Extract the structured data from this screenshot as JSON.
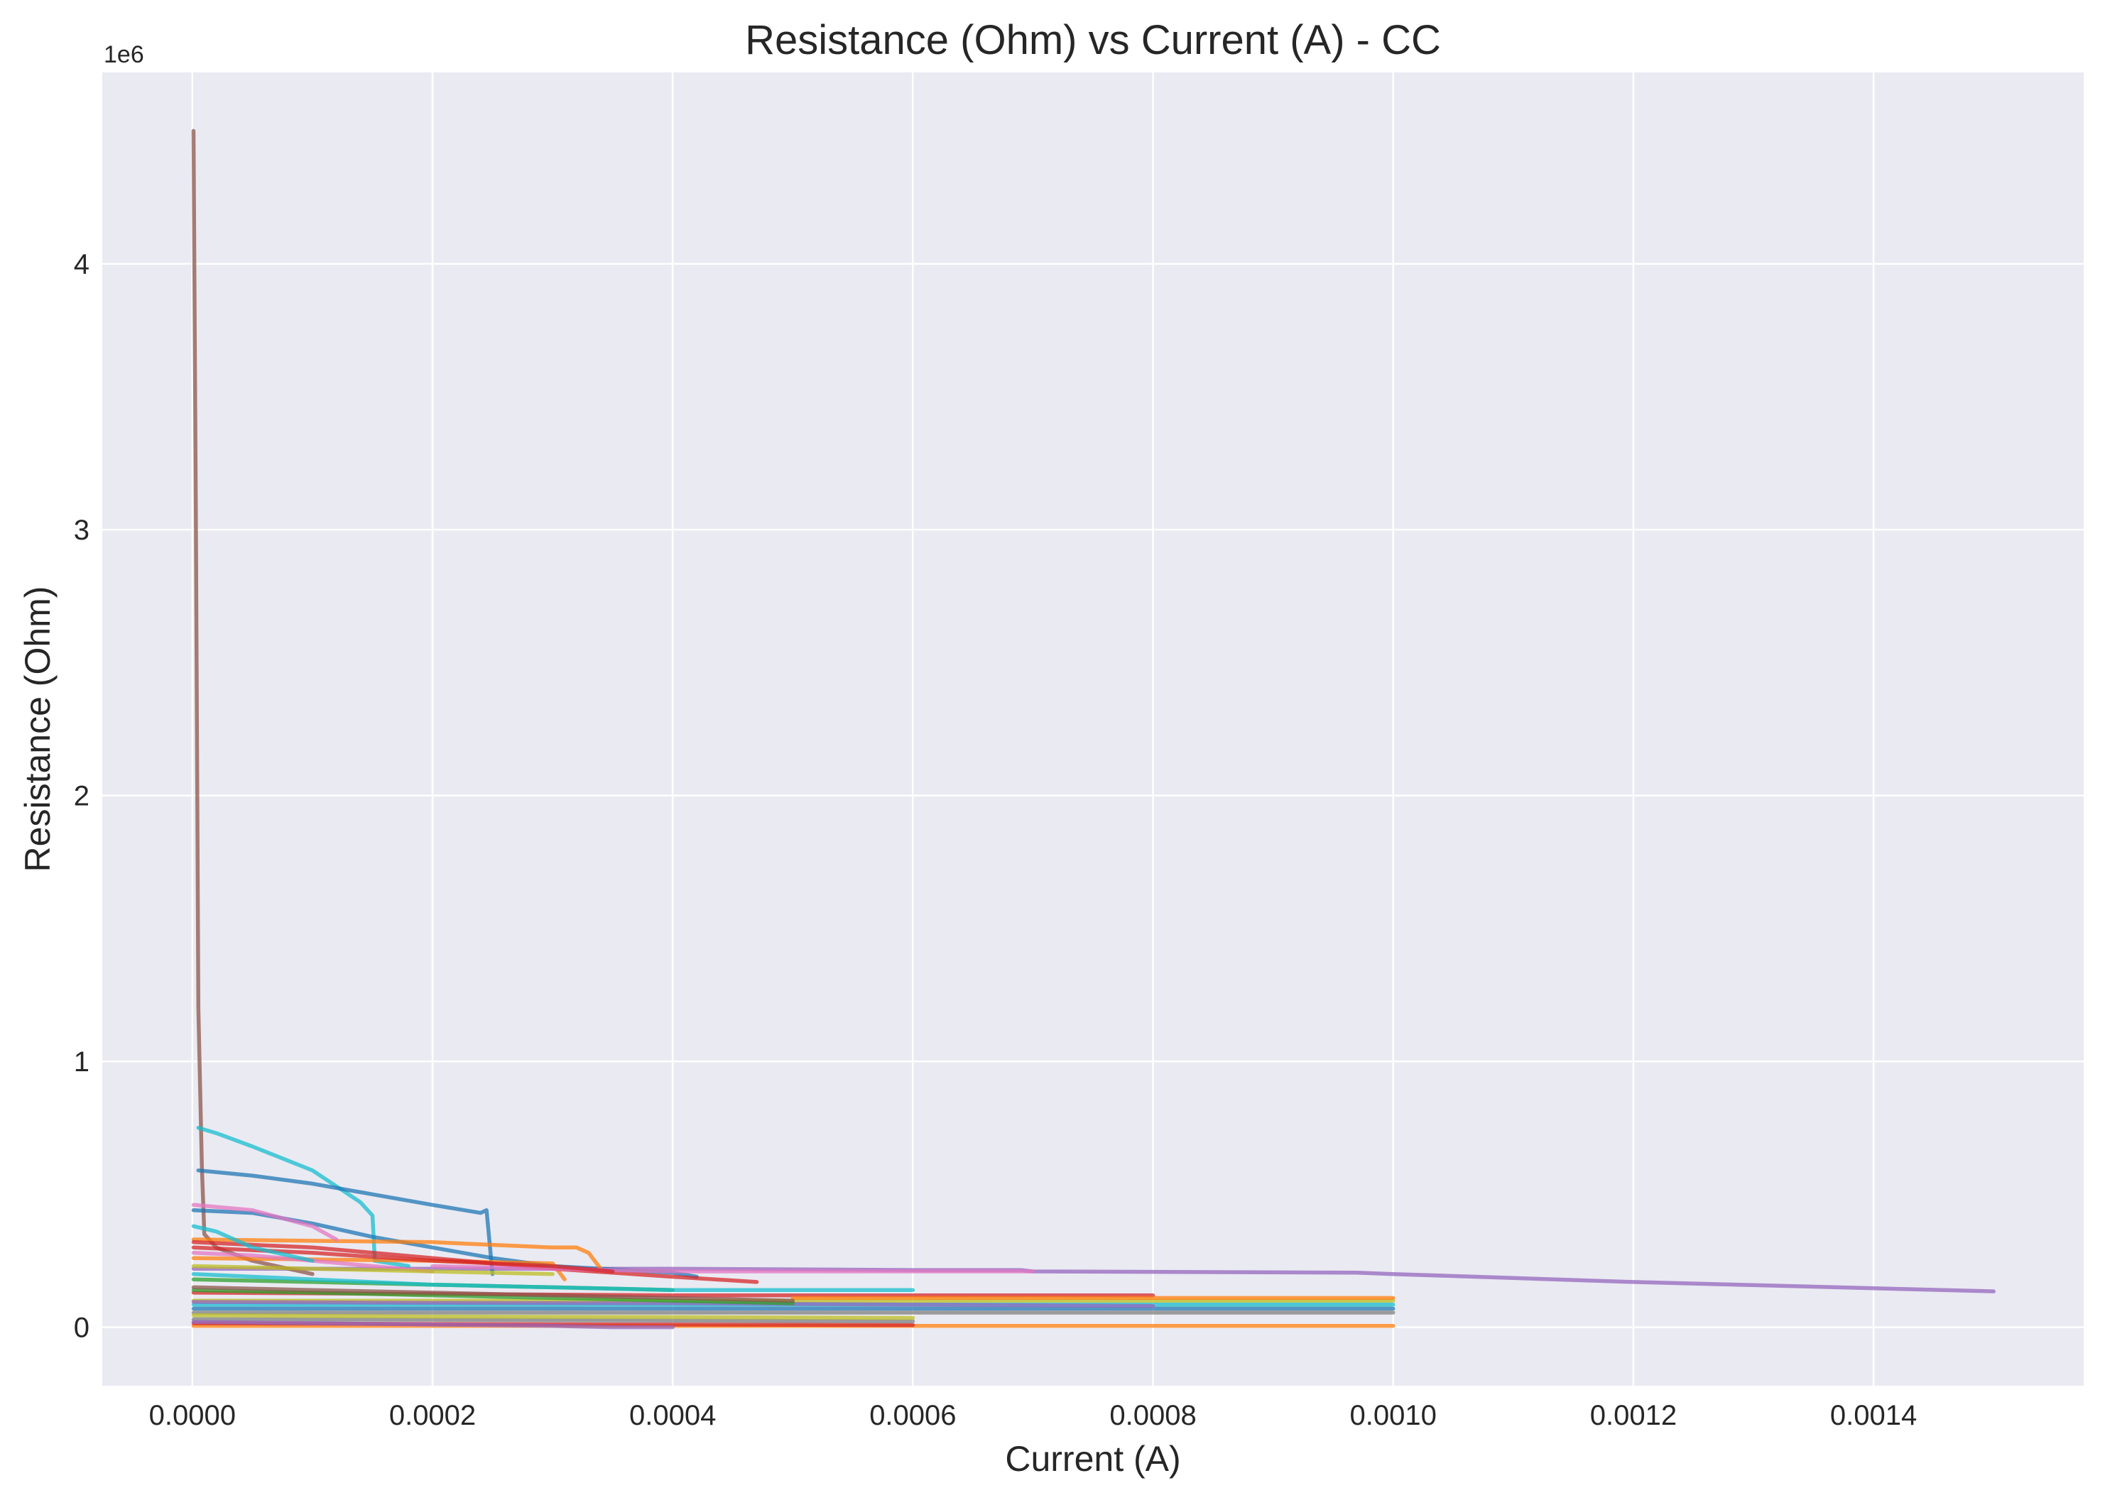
{
  "chart_data": {
    "type": "line",
    "title": "Resistance (Ohm) vs Current (A) - CC",
    "xlabel": "Current (A)",
    "ylabel": "Resistance (Ohm)",
    "y_offset_label": "1e6",
    "xlim": [
      -7.5e-05,
      0.001575
    ],
    "ylim": [
      -220000,
      4720000
    ],
    "x_ticks": [
      0,
      0.0002,
      0.0004,
      0.0006,
      0.0008,
      0.001,
      0.0012,
      0.0014
    ],
    "x_tick_labels": [
      "0.0000",
      "0.0002",
      "0.0004",
      "0.0006",
      "0.0008",
      "0.0010",
      "0.0012",
      "0.0014"
    ],
    "y_ticks": [
      0,
      1000000,
      2000000,
      3000000,
      4000000
    ],
    "y_tick_labels": [
      "0",
      "1",
      "2",
      "3",
      "4"
    ],
    "grid": true,
    "background": "#eaeaf2",
    "series": [
      {
        "color": "#9467bd",
        "x": [
          1e-06,
          0.0002,
          0.0004,
          0.0006,
          0.00069,
          0.0007,
          0.00097,
          0.001,
          0.0012,
          0.0015
        ],
        "y": [
          220000,
          220000,
          220000,
          215000,
          215000,
          210000,
          205000,
          200000,
          170000,
          135000
        ]
      },
      {
        "color": "#8c564b",
        "x": [
          1e-06,
          3e-06,
          5e-06,
          8e-06,
          1e-05,
          2e-05,
          5e-05,
          0.0001
        ],
        "y": [
          4500000,
          3000000,
          1200000,
          600000,
          350000,
          300000,
          250000,
          200000
        ]
      },
      {
        "color": "#17becf",
        "x": [
          5e-06,
          2e-05,
          5e-05,
          0.0001,
          0.00014,
          0.00015,
          0.000152,
          0.00018
        ],
        "y": [
          750000,
          730000,
          680000,
          590000,
          470000,
          420000,
          250000,
          230000
        ]
      },
      {
        "color": "#1f77b4",
        "x": [
          5e-06,
          5e-05,
          0.0001,
          0.00015,
          0.0002,
          0.00024,
          0.000245,
          0.00025
        ],
        "y": [
          590000,
          570000,
          540000,
          500000,
          460000,
          430000,
          440000,
          200000
        ]
      },
      {
        "color": "#1f77b4",
        "x": [
          1e-06,
          5e-05,
          0.0001,
          0.00015,
          0.0002,
          0.00025,
          0.0003,
          0.0004,
          0.00042
        ],
        "y": [
          440000,
          430000,
          390000,
          340000,
          300000,
          260000,
          230000,
          205000,
          190000
        ]
      },
      {
        "color": "#ff7f0e",
        "x": [
          1e-06,
          0.0001,
          0.0002,
          0.0003,
          0.00032,
          0.00033,
          0.00034
        ],
        "y": [
          330000,
          325000,
          320000,
          300000,
          300000,
          280000,
          220000
        ]
      },
      {
        "color": "#ff7f0e",
        "x": [
          1e-06,
          0.0001,
          0.0002,
          0.0003,
          0.00031
        ],
        "y": [
          260000,
          255000,
          250000,
          240000,
          180000
        ]
      },
      {
        "color": "#d62728",
        "x": [
          1e-06,
          0.0001,
          0.0002,
          0.0003,
          0.0004,
          0.00047
        ],
        "y": [
          320000,
          300000,
          260000,
          220000,
          190000,
          170000
        ]
      },
      {
        "color": "#e377c2",
        "x": [
          1e-06,
          5e-05,
          0.0001,
          0.00012
        ],
        "y": [
          460000,
          440000,
          380000,
          330000
        ]
      },
      {
        "color": "#e377c2",
        "x": [
          0.0002,
          0.0003,
          0.0004,
          0.0005,
          0.0006,
          0.0007
        ],
        "y": [
          230000,
          220000,
          210000,
          210000,
          210000,
          210000
        ]
      },
      {
        "color": "#2ca02c",
        "x": [
          1e-06,
          0.0001,
          0.0002,
          0.0003,
          0.0004
        ],
        "y": [
          180000,
          170000,
          160000,
          150000,
          140000
        ]
      },
      {
        "color": "#d62728",
        "x": [
          1e-06,
          0.0002,
          0.0004,
          0.0006,
          0.0008
        ],
        "y": [
          130000,
          125000,
          120000,
          120000,
          120000
        ]
      },
      {
        "color": "#bcbd22",
        "x": [
          1e-06,
          0.0002,
          0.0004,
          0.0006,
          0.0008,
          0.001
        ],
        "y": [
          100000,
          100000,
          100000,
          100000,
          100000,
          100000
        ]
      },
      {
        "color": "#ff7f0e",
        "x": [
          0.0005,
          0.0006,
          0.0007,
          0.0008,
          0.0009,
          0.001
        ],
        "y": [
          110000,
          110000,
          110000,
          110000,
          110000,
          110000
        ]
      },
      {
        "color": "#17becf",
        "x": [
          1e-06,
          0.0002,
          0.0004,
          0.0006,
          0.0008,
          0.001
        ],
        "y": [
          85000,
          85000,
          85000,
          85000,
          85000,
          85000
        ]
      },
      {
        "color": "#1f77b4",
        "x": [
          1e-06,
          0.0002,
          0.0004,
          0.0006,
          0.0008,
          0.001
        ],
        "y": [
          70000,
          70000,
          70000,
          70000,
          70000,
          70000
        ]
      },
      {
        "color": "#7f7f7f",
        "x": [
          1e-06,
          0.0002,
          0.0004,
          0.0006,
          0.0008,
          0.001
        ],
        "y": [
          55000,
          55000,
          55000,
          55000,
          55000,
          55000
        ]
      },
      {
        "color": "#9467bd",
        "x": [
          1e-06,
          0.0002,
          0.0004,
          0.0006,
          0.0008
        ],
        "y": [
          95000,
          92000,
          90000,
          85000,
          80000
        ]
      },
      {
        "color": "#ff7f0e",
        "x": [
          1e-06,
          0.0002,
          0.0004,
          0.0006,
          0.0008,
          0.001
        ],
        "y": [
          5000,
          5000,
          5000,
          5000,
          5000,
          5000
        ]
      },
      {
        "color": "#d62728",
        "x": [
          1e-06,
          0.0002,
          0.0004,
          0.0006
        ],
        "y": [
          15000,
          12000,
          10000,
          8000
        ]
      },
      {
        "color": "#7f7f7f",
        "x": [
          1e-06,
          0.0002,
          0.0004,
          0.0006
        ],
        "y": [
          30000,
          28000,
          25000,
          22000
        ]
      },
      {
        "color": "#bcbd22",
        "x": [
          1e-06,
          0.0002,
          0.0004,
          0.0006
        ],
        "y": [
          45000,
          40000,
          38000,
          35000
        ]
      },
      {
        "color": "#17becf",
        "x": [
          1e-06,
          0.0001,
          0.0002,
          0.0003,
          0.0004,
          0.0005,
          0.0006
        ],
        "y": [
          200000,
          180000,
          160000,
          150000,
          140000,
          140000,
          140000
        ]
      },
      {
        "color": "#2ca02c",
        "x": [
          1e-06,
          0.0001,
          0.0002,
          0.0003,
          0.0004,
          0.0005
        ],
        "y": [
          140000,
          130000,
          120000,
          110000,
          100000,
          90000
        ]
      },
      {
        "color": "#8c564b",
        "x": [
          1e-06,
          0.0001,
          0.0002,
          0.0003,
          0.0004,
          0.0005
        ],
        "y": [
          150000,
          140000,
          130000,
          120000,
          110000,
          100000
        ]
      },
      {
        "color": "#e377c2",
        "x": [
          1e-06,
          5e-05,
          0.0001,
          0.00015,
          0.0002
        ],
        "y": [
          280000,
          270000,
          250000,
          230000,
          210000
        ]
      },
      {
        "color": "#bcbd22",
        "x": [
          1e-06,
          0.0001,
          0.0002,
          0.0003
        ],
        "y": [
          230000,
          220000,
          210000,
          200000
        ]
      },
      {
        "color": "#d62728",
        "x": [
          1e-06,
          0.0001,
          0.0002,
          0.0003,
          0.00035
        ],
        "y": [
          300000,
          280000,
          250000,
          230000,
          210000
        ]
      },
      {
        "color": "#9467bd",
        "x": [
          1e-06,
          0.0001,
          0.0002,
          0.0003,
          0.00035,
          0.0004
        ],
        "y": [
          20000,
          15000,
          10000,
          5000,
          0,
          0
        ]
      },
      {
        "color": "#17becf",
        "x": [
          1e-06,
          2e-05,
          5e-05,
          0.0001
        ],
        "y": [
          380000,
          360000,
          300000,
          250000
        ]
      }
    ]
  }
}
